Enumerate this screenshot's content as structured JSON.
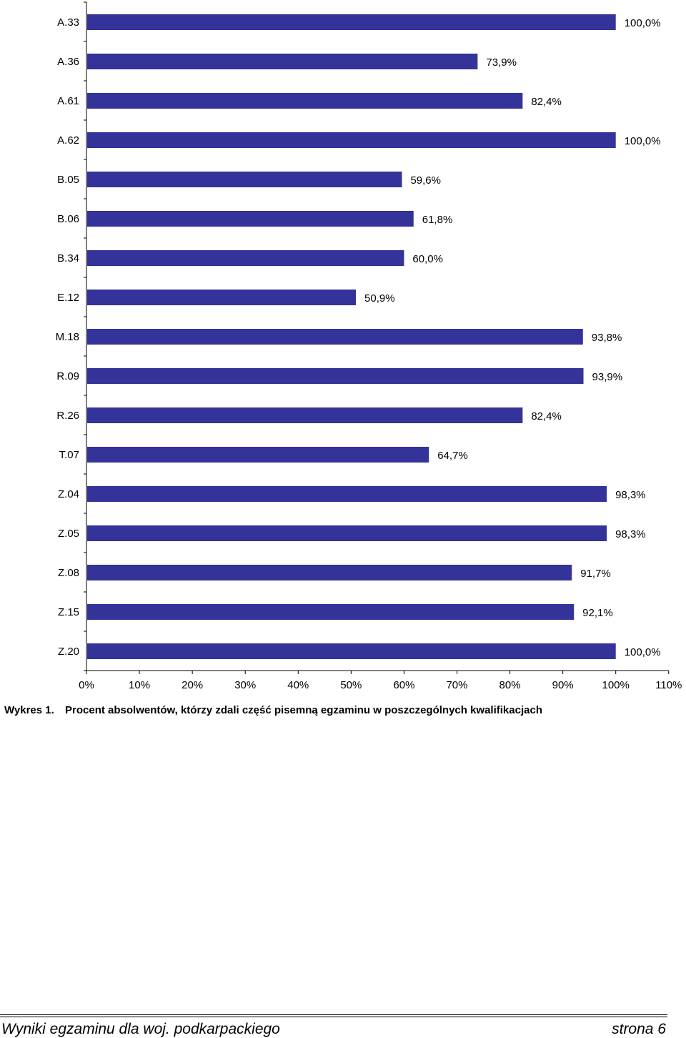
{
  "chart_data": {
    "type": "bar",
    "orientation": "horizontal",
    "categories": [
      "A.33",
      "A.36",
      "A.61",
      "A.62",
      "B.05",
      "B.06",
      "B.34",
      "E.12",
      "M.18",
      "R.09",
      "R.26",
      "T.07",
      "Z.04",
      "Z.05",
      "Z.08",
      "Z.15",
      "Z.20"
    ],
    "values": [
      100.0,
      73.9,
      82.4,
      100.0,
      59.6,
      61.8,
      60.0,
      50.9,
      93.8,
      93.9,
      82.4,
      64.7,
      98.3,
      98.3,
      91.7,
      92.1,
      100.0
    ],
    "data_labels": [
      "100,0%",
      "73,9%",
      "82,4%",
      "100,0%",
      "59,6%",
      "61,8%",
      "60,0%",
      "50,9%",
      "93,8%",
      "93,9%",
      "82,4%",
      "64,7%",
      "98,3%",
      "98,3%",
      "91,7%",
      "92,1%",
      "100,0%"
    ],
    "x_ticks": [
      "0%",
      "10%",
      "20%",
      "30%",
      "40%",
      "50%",
      "60%",
      "70%",
      "80%",
      "90%",
      "100%",
      "110%"
    ],
    "xlim": [
      0,
      110
    ],
    "bar_color": "#333399",
    "grid": false,
    "legend": "none"
  },
  "caption": {
    "number": "Wykres 1.",
    "text": "Procent absolwentów, którzy zdali część pisemną egzaminu w poszczególnych kwalifikacjach"
  },
  "footer": {
    "left": "Wyniki egzaminu dla woj. podkarpackiego",
    "right": "strona 6"
  }
}
